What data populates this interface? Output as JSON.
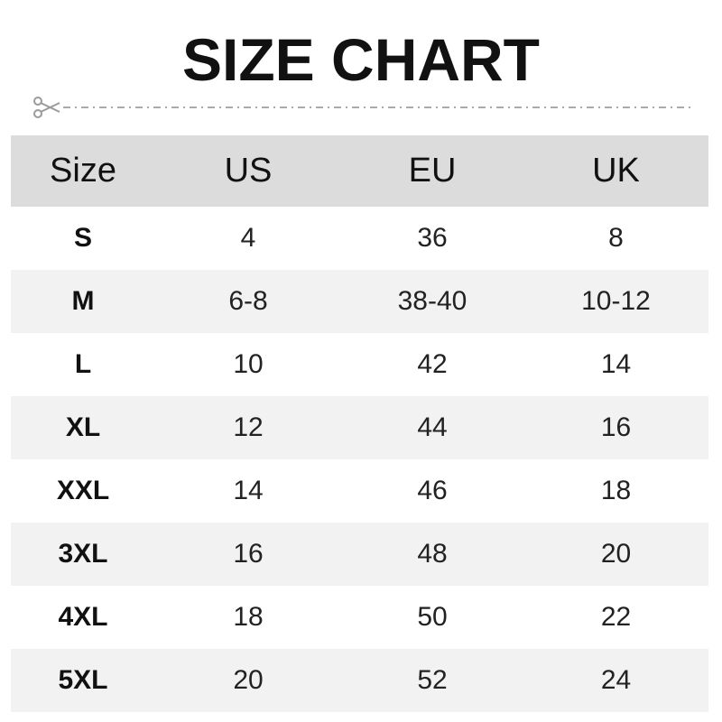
{
  "title": "SIZE CHART",
  "icons": {
    "cut_marker": "scissors-icon"
  },
  "colors": {
    "header_bg": "#dcdcdc",
    "alt_row_bg": "#f2f2f2",
    "cut_line": "#aaaaaa"
  },
  "table": {
    "headers": [
      "Size",
      "US",
      "EU",
      "UK"
    ],
    "rows": [
      [
        "S",
        "4",
        "36",
        "8"
      ],
      [
        "M",
        "6-8",
        "38-40",
        "10-12"
      ],
      [
        "L",
        "10",
        "42",
        "14"
      ],
      [
        "XL",
        "12",
        "44",
        "16"
      ],
      [
        "XXL",
        "14",
        "46",
        "18"
      ],
      [
        "3XL",
        "16",
        "48",
        "20"
      ],
      [
        "4XL",
        "18",
        "50",
        "22"
      ],
      [
        "5XL",
        "20",
        "52",
        "24"
      ]
    ]
  }
}
